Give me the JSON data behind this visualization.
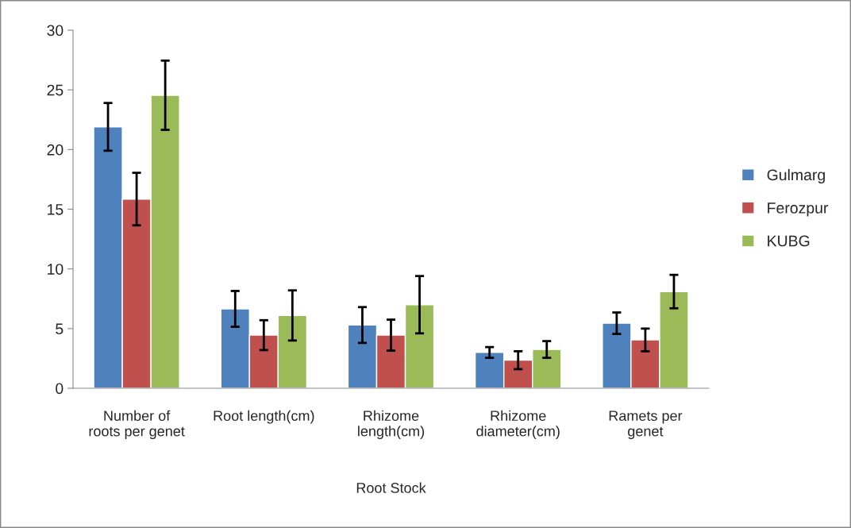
{
  "chart_data": {
    "type": "bar",
    "xlabel": "Root Stock",
    "categories": [
      "Number of\nroots per genet",
      "Root length(cm)",
      "Rhizome\nlength(cm)",
      "Rhizome\ndiameter(cm)",
      "Ramets per\ngenet"
    ],
    "series": [
      {
        "name": "Gulmarg",
        "color": "#4f81bd",
        "values": [
          21.9,
          6.65,
          5.3,
          3.0,
          5.45
        ],
        "errors": [
          2.0,
          1.5,
          1.5,
          0.45,
          0.9
        ]
      },
      {
        "name": "Ferozpur",
        "color": "#c0504d",
        "values": [
          15.85,
          4.45,
          4.45,
          2.35,
          4.05
        ],
        "errors": [
          2.2,
          1.25,
          1.3,
          0.75,
          0.95
        ]
      },
      {
        "name": "KUBG",
        "color": "#9bbb59",
        "values": [
          24.55,
          6.1,
          7.0,
          3.25,
          8.1
        ],
        "errors": [
          2.9,
          2.1,
          2.4,
          0.7,
          1.4
        ]
      }
    ],
    "ylim": [
      0,
      30
    ],
    "yticks": [
      0,
      5,
      10,
      15,
      20,
      25,
      30
    ],
    "grid": false,
    "legend": "right"
  }
}
